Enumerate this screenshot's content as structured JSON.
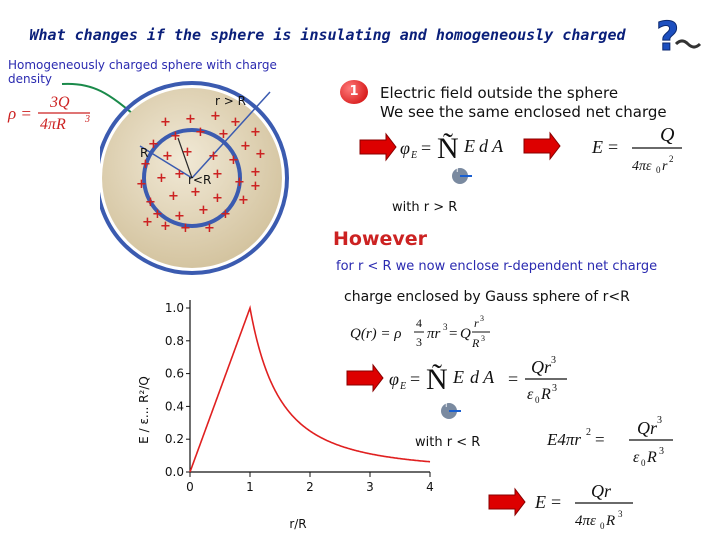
{
  "title": "What changes if the sphere is insulating and homogeneously charged",
  "description": "Homogeneously charged sphere with charge density",
  "density_formula": {
    "lhs": "ρ =",
    "num": "3Q",
    "den": "4πR"
  },
  "sphere_labels": {
    "outer": "r > R",
    "radius": "R",
    "inner": "r<R"
  },
  "badge_number": "1",
  "field_outside": {
    "line1": "Electric field outside the sphere",
    "line2": "We see the same enclosed net charge"
  },
  "with_r_greater": "with r > R",
  "however": "However",
  "note_inside": "for r < R we now enclose r-dependent net charge",
  "charge_enclosed": "charge enclosed by Gauss sphere of r<R",
  "with_r_less": "with r < R",
  "colors": {
    "title": "#0a1f7a",
    "note": "#2a2ab0",
    "equation": "#cc2222",
    "arrow": "#dd0000",
    "sphere_fill": "#e6dbc2",
    "sphere_ring": "#3b5bb0",
    "plot_line": "#e02020"
  },
  "chart_data": {
    "type": "line",
    "xlabel": "r/R",
    "ylabel": "E / ε... R²/Q",
    "xlim": [
      0,
      4
    ],
    "ylim": [
      0,
      1.0
    ],
    "x_ticks": [
      "0",
      "1",
      "2",
      "3",
      "4"
    ],
    "y_ticks": [
      "0.0",
      "0.2",
      "0.4",
      "0.6",
      "0.8",
      "1.0"
    ],
    "series": [
      {
        "x": [
          0,
          0.25,
          0.5,
          0.75,
          1.0,
          1.25,
          1.5,
          2.0,
          2.5,
          3.0,
          3.5,
          4.0
        ],
        "y": [
          0.0,
          0.25,
          0.5,
          0.75,
          1.0,
          0.64,
          0.444,
          0.25,
          0.16,
          0.111,
          0.082,
          0.0625
        ]
      }
    ]
  }
}
